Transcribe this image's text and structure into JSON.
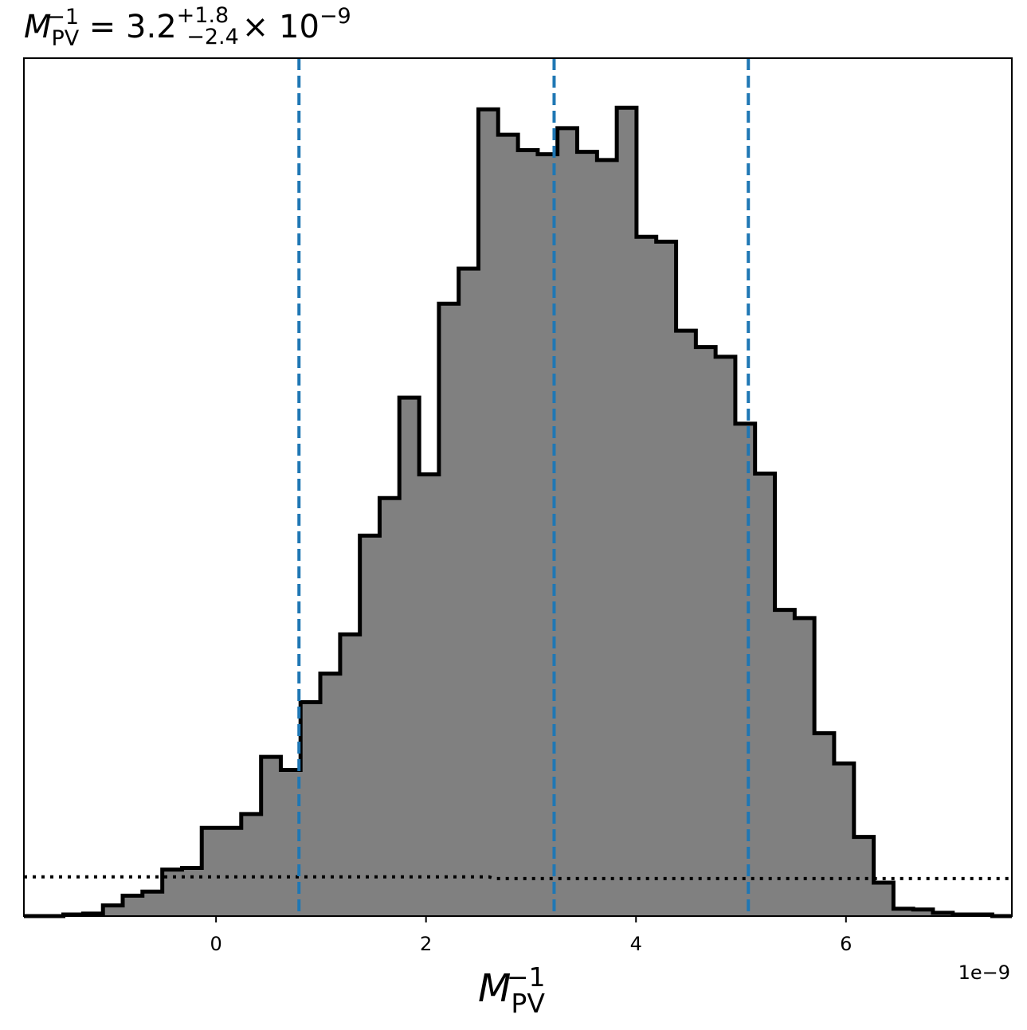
{
  "chart_data": {
    "type": "histogram",
    "title": {
      "symbol": "M",
      "subscript": "PV",
      "superscript": "−1",
      "value": "3.2",
      "upper_error": "+1.8",
      "lower_error": "−2.4",
      "scale": "× 10",
      "scale_exponent": "−9"
    },
    "xlabel": {
      "symbol": "M",
      "subscript": "PV",
      "superscript": "−1"
    },
    "x_offset_label": "1e−9",
    "xlim": [
      -1.83,
      7.58
    ],
    "ylim": [
      0,
      1.0
    ],
    "xticks": [
      0,
      2,
      4,
      6
    ],
    "xtick_labels": [
      "0",
      "2",
      "4",
      "6"
    ],
    "yticks_visible": false,
    "grid": false,
    "bin_edges": [
      -1.83,
      -1.642,
      -1.454,
      -1.265,
      -1.077,
      -0.889,
      -0.701,
      -0.512,
      -0.324,
      -0.136,
      0.052,
      0.24,
      0.429,
      0.617,
      0.805,
      0.993,
      1.182,
      1.37,
      1.558,
      1.746,
      1.935,
      2.123,
      2.311,
      2.499,
      2.687,
      2.876,
      3.064,
      3.252,
      3.44,
      3.629,
      3.817,
      4.005,
      4.193,
      4.382,
      4.57,
      4.758,
      4.946,
      5.134,
      5.323,
      5.511,
      5.699,
      5.887,
      6.076,
      6.264,
      6.452,
      6.64,
      6.828,
      7.017,
      7.205,
      7.393,
      7.58
    ],
    "counts": [
      0.0,
      0.0,
      0.002,
      0.003,
      0.013,
      0.025,
      0.03,
      0.057,
      0.059,
      0.108,
      0.108,
      0.125,
      0.195,
      0.179,
      0.262,
      0.297,
      0.345,
      0.466,
      0.512,
      0.635,
      0.541,
      0.75,
      0.793,
      0.988,
      0.957,
      0.938,
      0.933,
      0.965,
      0.936,
      0.926,
      0.99,
      0.832,
      0.826,
      0.717,
      0.697,
      0.685,
      0.603,
      0.542,
      0.375,
      0.365,
      0.224,
      0.187,
      0.097,
      0.041,
      0.009,
      0.008,
      0.004,
      0.002,
      0.002,
      0.0
    ],
    "fill_color": "#808080",
    "edge_color": "#000000",
    "quantile_lines": {
      "values": [
        0.79,
        3.22,
        5.07
      ],
      "color": "#1f77b4",
      "style": "dashed"
    },
    "reference_curve": {
      "style": "dotted",
      "color": "#000000",
      "x": [
        -1.83,
        2.6,
        2.65,
        7.58
      ],
      "y": [
        0.048,
        0.048,
        0.046,
        0.046
      ]
    }
  }
}
